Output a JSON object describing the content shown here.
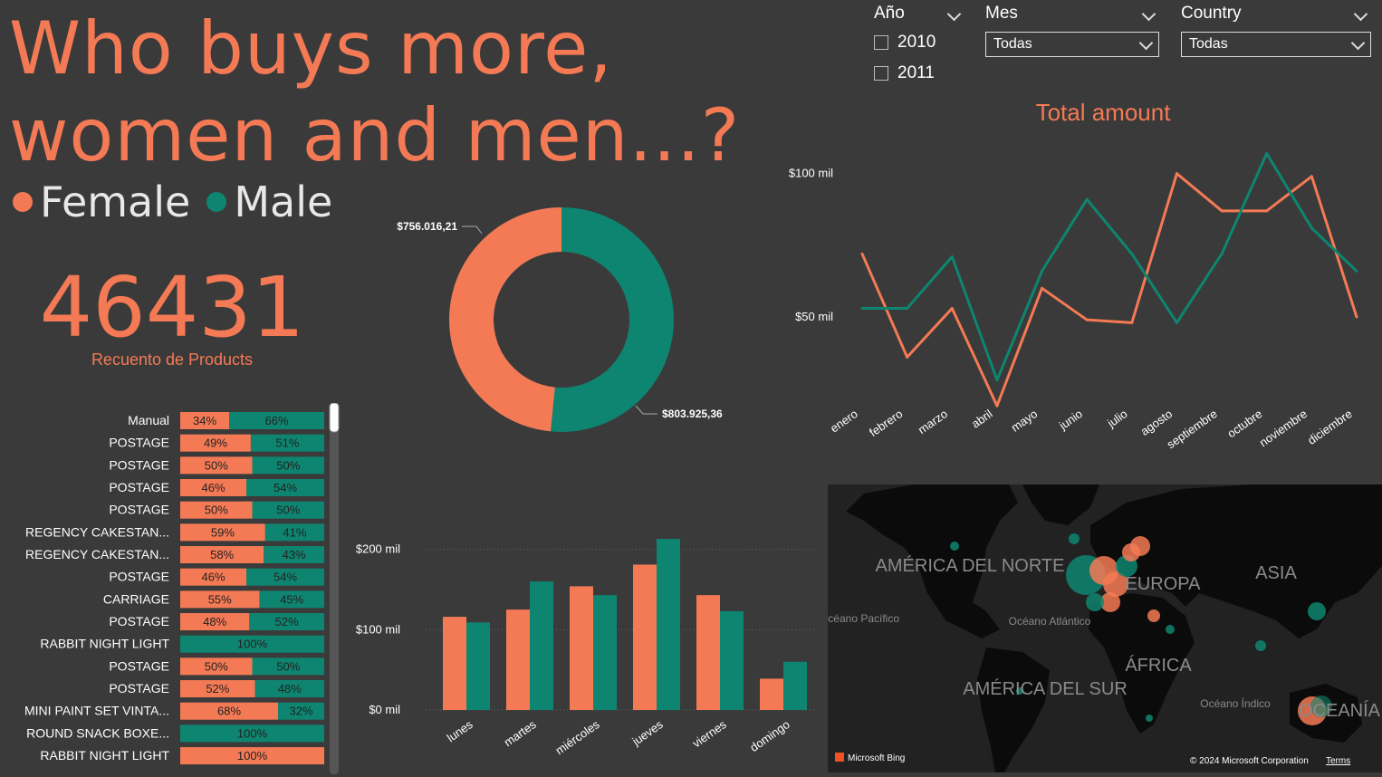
{
  "header": {
    "title": "Who buys more, women and men...?"
  },
  "legend": [
    {
      "label": "Female",
      "color": "#f47a55"
    },
    {
      "label": "Male",
      "color": "#0e8570"
    }
  ],
  "colors": {
    "female": "#f47a55",
    "male": "#0e8570",
    "background": "#3a3a3a"
  },
  "kpi": {
    "value": "46431",
    "label": "Recuento de Products"
  },
  "filters": {
    "year": {
      "title": "Año",
      "options": [
        "2010",
        "2011"
      ]
    },
    "month": {
      "title": "Mes",
      "selected": "Todas"
    },
    "country": {
      "title": "Country",
      "selected": "Todas"
    }
  },
  "map": {
    "labels": [
      "AMÉRICA DEL NORTE",
      "EUROPA",
      "ASIA",
      "ÁFRICA",
      "AMÉRICA DEL SUR",
      "OCEANÍA",
      "Océano Pacífico",
      "Océano Atlántico",
      "Océano Índico"
    ],
    "brand": "Microsoft Bing",
    "copyright": "© 2024 Microsoft Corporation",
    "terms": "Terms"
  },
  "chart_data": [
    {
      "type": "pie",
      "variant": "donut",
      "slices": [
        {
          "name": "Female",
          "value": 756016.21,
          "label": "$756.016,21"
        },
        {
          "name": "Male",
          "value": 803925.36,
          "label": "$803.925,36"
        }
      ]
    },
    {
      "type": "line",
      "title": "Total amount",
      "categories": [
        "enero",
        "febrero",
        "marzo",
        "abril",
        "mayo",
        "junio",
        "julio",
        "agosto",
        "septiembre",
        "octubre",
        "noviembre",
        "diciembre"
      ],
      "yticks": [
        {
          "value": 50,
          "label": "$50 mil"
        },
        {
          "value": 100,
          "label": "$100 mil"
        }
      ],
      "ylim": [
        20,
        110
      ],
      "series": [
        {
          "name": "Female",
          "values": [
            72,
            36,
            53,
            19,
            60,
            49,
            48,
            100,
            87,
            87,
            99,
            50
          ]
        },
        {
          "name": "Male",
          "values": [
            53,
            53,
            71,
            28,
            66,
            91,
            72,
            48,
            72,
            107,
            81,
            66
          ]
        }
      ]
    },
    {
      "type": "bar",
      "orientation": "vertical",
      "categories": [
        "lunes",
        "martes",
        "miércoles",
        "jueves",
        "viernes",
        "domingo"
      ],
      "yticks": [
        {
          "value": 0,
          "label": "$0 mil"
        },
        {
          "value": 100,
          "label": "$100 mil"
        },
        {
          "value": 200,
          "label": "$200 mil"
        }
      ],
      "ylim": [
        0,
        230
      ],
      "series": [
        {
          "name": "Female",
          "values": [
            116,
            125,
            154,
            181,
            143,
            39
          ]
        },
        {
          "name": "Male",
          "values": [
            109,
            160,
            143,
            213,
            123,
            60
          ]
        }
      ]
    },
    {
      "type": "bar",
      "orientation": "horizontal",
      "stacked": "percent",
      "categories": [
        "Manual",
        "POSTAGE",
        "POSTAGE",
        "POSTAGE",
        "POSTAGE",
        "REGENCY CAKESTAN...",
        "REGENCY CAKESTAN...",
        "POSTAGE",
        "CARRIAGE",
        "POSTAGE",
        "RABBIT NIGHT LIGHT",
        "POSTAGE",
        "POSTAGE",
        "MINI PAINT SET VINTA...",
        "ROUND SNACK BOXE...",
        "RABBIT NIGHT LIGHT"
      ],
      "series": [
        {
          "name": "Female",
          "values": [
            34,
            49,
            50,
            46,
            50,
            59,
            58,
            46,
            55,
            48,
            0,
            50,
            52,
            68,
            0,
            100
          ]
        },
        {
          "name": "Male",
          "values": [
            66,
            51,
            50,
            54,
            50,
            41,
            43,
            54,
            45,
            52,
            100,
            50,
            48,
            32,
            100,
            0
          ]
        }
      ]
    }
  ]
}
